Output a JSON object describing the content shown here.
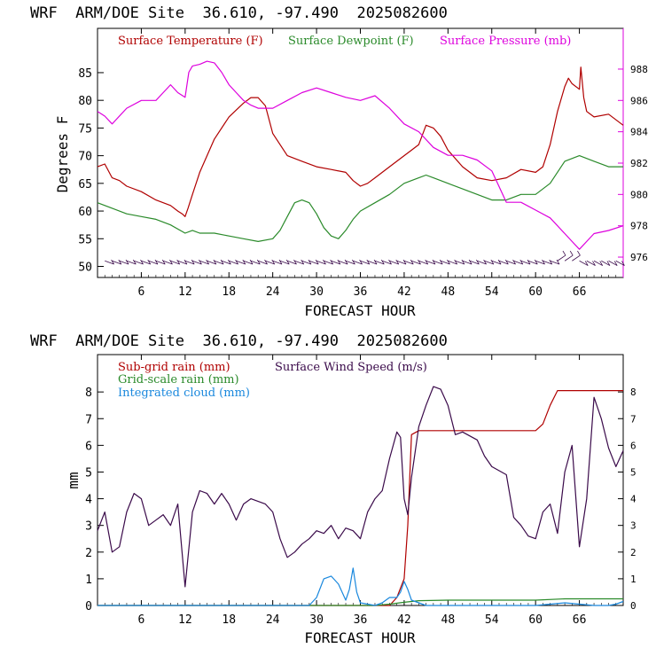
{
  "colors": {
    "temperature": "#b00000",
    "dewpoint": "#2a8a2a",
    "pressure": "#dd00dd",
    "subgrid_rain": "#b00000",
    "gridscale_rain": "#2a8a2a",
    "cloud": "#1a88dd",
    "wind_speed": "#3a0a4a",
    "axes": "#000000",
    "right_axis": "#dd00dd"
  },
  "chart_data": [
    {
      "type": "line",
      "header": "WRF  ARM/DOE Site  36.610, -97.490  2025082600",
      "xlabel": "FORECAST HOUR",
      "ylabel": "Degrees F",
      "xlim": [
        0,
        72
      ],
      "ylim": [
        48,
        93
      ],
      "y2lim": [
        974.7,
        990.6
      ],
      "xticks": [
        "6",
        "12",
        "18",
        "24",
        "30",
        "36",
        "42",
        "48",
        "54",
        "60",
        "66"
      ],
      "yticks": [
        "50",
        "55",
        "60",
        "65",
        "70",
        "75",
        "80",
        "85"
      ],
      "y2ticks": [
        "976",
        "978",
        "980",
        "982",
        "984",
        "986",
        "988"
      ],
      "legend": [
        "Surface Temperature (F)",
        "Surface Dewpoint (F)",
        "Surface Pressure (mb)"
      ],
      "wind_barbs_row_y": 51,
      "series": [
        {
          "name": "Surface Temperature (F)",
          "axis": "left",
          "x": [
            0,
            1,
            2,
            3,
            4,
            6,
            8,
            10,
            11,
            11.6,
            12,
            12.4,
            13,
            14,
            16,
            18,
            20,
            21,
            22,
            23,
            24,
            25,
            26,
            28,
            30,
            32,
            34,
            35,
            36,
            37,
            38,
            40,
            42,
            43,
            44,
            45,
            46,
            47,
            48,
            50,
            52,
            54,
            56,
            58,
            60,
            61,
            62,
            63,
            64,
            64.5,
            65,
            66,
            66.2,
            66.6,
            67,
            68,
            70,
            72
          ],
          "y": [
            68,
            68.5,
            66,
            65.5,
            64.5,
            63.5,
            62,
            61,
            60,
            59.5,
            59,
            60.5,
            63,
            67,
            73,
            77,
            79.5,
            80.5,
            80.5,
            79,
            74,
            72,
            70,
            69,
            68,
            67.5,
            67,
            65.5,
            64.5,
            65,
            66,
            68,
            70,
            71,
            72,
            75.5,
            75,
            73.5,
            71,
            68,
            66,
            65.5,
            66,
            67.5,
            67,
            68,
            72,
            78,
            82.5,
            84,
            83,
            82,
            86,
            80.5,
            78,
            77,
            77.5,
            75.5
          ]
        },
        {
          "name": "Surface Dewpoint (F)",
          "axis": "left",
          "x": [
            0,
            2,
            4,
            6,
            8,
            10,
            12,
            13,
            14,
            16,
            18,
            20,
            22,
            24,
            25,
            26,
            27,
            28,
            29,
            30,
            31,
            32,
            33,
            34,
            35,
            36,
            38,
            40,
            42,
            44,
            45,
            46,
            48,
            50,
            52,
            54,
            56,
            58,
            60,
            62,
            64,
            66,
            68,
            70,
            72
          ],
          "y": [
            61.5,
            60.5,
            59.5,
            59,
            58.5,
            57.5,
            56,
            56.5,
            56,
            56,
            55.5,
            55,
            54.5,
            55,
            56.5,
            59,
            61.5,
            62,
            61.5,
            59.5,
            57,
            55.5,
            55,
            56.5,
            58.5,
            60,
            61.5,
            63,
            65,
            66,
            66.5,
            66,
            65,
            64,
            63,
            62,
            62,
            63,
            63,
            65,
            69,
            70,
            69,
            68,
            68
          ]
        },
        {
          "name": "Surface Pressure (mb)",
          "axis": "right",
          "x": [
            0,
            1,
            2,
            4,
            6,
            8,
            9,
            10,
            11,
            12,
            12.5,
            13,
            14,
            15,
            16,
            17,
            18,
            19,
            20,
            21,
            22,
            24,
            26,
            28,
            30,
            32,
            34,
            36,
            38,
            40,
            42,
            44,
            46,
            48,
            50,
            52,
            54,
            55,
            56,
            58,
            60,
            62,
            64,
            65,
            66,
            67,
            68,
            70,
            72
          ],
          "y": [
            985.3,
            985,
            984.5,
            985.5,
            986,
            986,
            986.5,
            987,
            986.5,
            986.2,
            987.8,
            988.2,
            988.3,
            988.5,
            988.4,
            987.8,
            987,
            986.5,
            986,
            985.7,
            985.5,
            985.5,
            986,
            986.5,
            986.8,
            986.5,
            986.2,
            986,
            986.3,
            985.5,
            984.5,
            984,
            983,
            982.5,
            982.5,
            982.2,
            981.5,
            980.5,
            979.5,
            979.5,
            979,
            978.5,
            977.5,
            977,
            976.5,
            977,
            977.5,
            977.7,
            978
          ]
        }
      ]
    },
    {
      "type": "line",
      "header": "WRF  ARM/DOE Site  36.610, -97.490  2025082600",
      "xlabel": "FORECAST HOUR",
      "ylabel": "mm",
      "xlim": [
        0,
        72
      ],
      "ylim": [
        0,
        9.4
      ],
      "y2lim": [
        0,
        9.4
      ],
      "xticks": [
        "6",
        "12",
        "18",
        "24",
        "30",
        "36",
        "42",
        "48",
        "54",
        "60",
        "66"
      ],
      "yticks": [
        "0",
        "1",
        "2",
        "3",
        "4",
        "5",
        "6",
        "7",
        "8"
      ],
      "y2ticks": [
        "0",
        "1",
        "2",
        "3",
        "4",
        "5",
        "6",
        "7",
        "8"
      ],
      "legend": [
        "Sub-grid rain (mm)",
        "Grid-scale rain (mm)",
        "Integrated cloud (mm)",
        "Surface Wind Speed (m/s)"
      ],
      "series": [
        {
          "name": "Sub-grid rain (mm)",
          "axis": "left",
          "x": [
            0,
            40,
            41,
            42,
            42.5,
            43,
            44,
            48,
            56,
            60,
            61,
            62,
            63,
            64,
            66,
            72
          ],
          "y": [
            0,
            0,
            0.3,
            1,
            3,
            6.4,
            6.55,
            6.55,
            6.55,
            6.55,
            6.8,
            7.5,
            8.05,
            8.05,
            8.05,
            8.05
          ]
        },
        {
          "name": "Grid-scale rain (mm)",
          "axis": "left",
          "x": [
            0,
            38,
            40,
            42,
            44,
            48,
            56,
            60,
            64,
            72
          ],
          "y": [
            0,
            0,
            0.05,
            0.12,
            0.18,
            0.2,
            0.2,
            0.2,
            0.25,
            0.25
          ]
        },
        {
          "name": "Integrated cloud (mm)",
          "axis": "left",
          "x": [
            0,
            29,
            30,
            31,
            32,
            33,
            34,
            34.5,
            35,
            35.5,
            36,
            37,
            38,
            39,
            40,
            41,
            41.5,
            42,
            42.5,
            43,
            44,
            45,
            46,
            60,
            62,
            64,
            66,
            68,
            70,
            71,
            72
          ],
          "y": [
            0,
            0,
            0.3,
            1,
            1.1,
            0.8,
            0.2,
            0.6,
            1.4,
            0.5,
            0.1,
            0.05,
            0,
            0.1,
            0.3,
            0.3,
            0.5,
            0.9,
            0.6,
            0.2,
            0.1,
            0,
            0,
            0,
            0.05,
            0.1,
            0.05,
            0,
            0,
            0.05,
            0.15
          ]
        },
        {
          "name": "Surface Wind Speed (m/s)",
          "axis": "right",
          "x": [
            0,
            1,
            2,
            3,
            4,
            5,
            6,
            7,
            8,
            9,
            10,
            11,
            12,
            13,
            14,
            15,
            16,
            17,
            18,
            19,
            20,
            21,
            22,
            23,
            24,
            25,
            26,
            27,
            28,
            29,
            30,
            31,
            32,
            33,
            34,
            35,
            36,
            37,
            38,
            39,
            40,
            41,
            41.5,
            42,
            42.5,
            43,
            44,
            45,
            46,
            47,
            48,
            49,
            50,
            52,
            53,
            54,
            56,
            57,
            58,
            59,
            60,
            61,
            62,
            63,
            64,
            65,
            66,
            67,
            68,
            69,
            70,
            71,
            72
          ],
          "y": [
            2.8,
            3.5,
            2,
            2.2,
            3.5,
            4.2,
            4,
            3,
            3.2,
            3.4,
            3,
            3.8,
            0.7,
            3.5,
            4.3,
            4.2,
            3.8,
            4.2,
            3.8,
            3.2,
            3.8,
            4,
            3.9,
            3.8,
            3.5,
            2.5,
            1.8,
            2,
            2.3,
            2.5,
            2.8,
            2.7,
            3,
            2.5,
            2.9,
            2.8,
            2.5,
            3.5,
            4,
            4.3,
            5.5,
            6.5,
            6.3,
            4,
            3.4,
            4.8,
            6.7,
            7.5,
            8.2,
            8.1,
            7.5,
            6.4,
            6.5,
            6.2,
            5.6,
            5.2,
            4.9,
            3.3,
            3,
            2.6,
            2.5,
            3.5,
            3.8,
            2.7,
            5,
            6,
            2.2,
            4,
            7.8,
            7,
            5.9,
            5.2,
            5.8
          ]
        }
      ]
    }
  ]
}
